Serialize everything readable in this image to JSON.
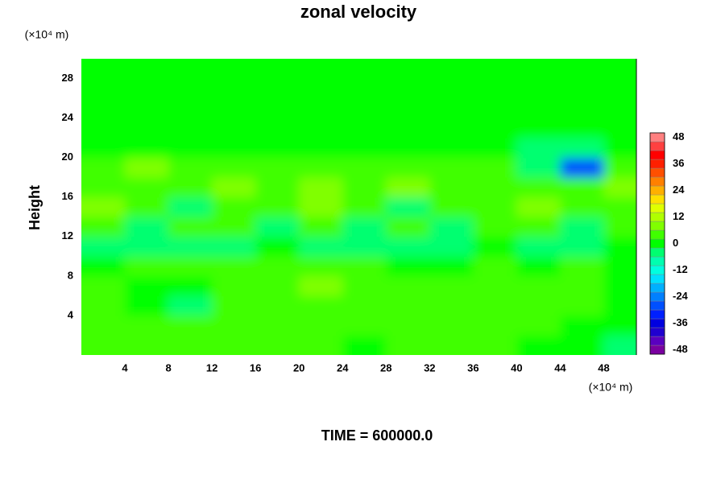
{
  "chart_data": {
    "type": "contour",
    "title": "zonal velocity",
    "ylabel": "Height",
    "y_unit": "(×10⁴ m)",
    "x_unit": "(×10⁴ m)",
    "footer": "TIME = 600000.0",
    "xlim": [
      0,
      51
    ],
    "ylim": [
      0,
      30
    ],
    "xticks": [
      4,
      8,
      12,
      16,
      20,
      24,
      28,
      32,
      36,
      40,
      44,
      48
    ],
    "yticks": [
      4,
      8,
      12,
      16,
      20,
      24,
      28
    ],
    "clim": [
      -50,
      50
    ],
    "cticks": [
      -48,
      -36,
      -24,
      -12,
      0,
      12,
      24,
      36,
      48
    ],
    "colormap": [
      "#7a00a0",
      "#5a00c0",
      "#2000d0",
      "#0000e0",
      "#0020ff",
      "#0050ff",
      "#0080ff",
      "#00b0ff",
      "#00e0ff",
      "#00ffe0",
      "#00ffb0",
      "#00ff70",
      "#00ff00",
      "#40ff00",
      "#80ff00",
      "#b0ff00",
      "#e0ff00",
      "#ffe000",
      "#ffb000",
      "#ff8000",
      "#ff5000",
      "#ff2000",
      "#ff0000",
      "#ff4040",
      "#ff8080"
    ],
    "x": [
      2,
      6,
      10,
      14,
      18,
      22,
      26,
      30,
      34,
      38,
      42,
      46,
      50
    ],
    "y": [
      1,
      3,
      5,
      7,
      9,
      11,
      13,
      15,
      17,
      19,
      21,
      23,
      25,
      27,
      29
    ],
    "z": [
      [
        2,
        4,
        5,
        4,
        2,
        3,
        1,
        4,
        3,
        2,
        1,
        0,
        -3
      ],
      [
        4,
        5,
        4,
        3,
        2,
        3,
        3,
        2,
        5,
        3,
        2,
        1,
        0
      ],
      [
        3,
        1,
        -3,
        2,
        3,
        4,
        2,
        5,
        3,
        3,
        4,
        2,
        1
      ],
      [
        2,
        -2,
        -1,
        3,
        5,
        6,
        3,
        2,
        2,
        4,
        5,
        3,
        1
      ],
      [
        1,
        2,
        4,
        2,
        2,
        5,
        3,
        1,
        0,
        2,
        1,
        2,
        0
      ],
      [
        -4,
        -5,
        -3,
        -4,
        -2,
        -3,
        -5,
        -4,
        -3,
        -2,
        -4,
        -3,
        -2
      ],
      [
        3,
        -3,
        5,
        4,
        -4,
        2,
        -5,
        3,
        -3,
        4,
        2,
        -4,
        3
      ],
      [
        6,
        4,
        -3,
        5,
        3,
        6,
        4,
        -4,
        5,
        3,
        6,
        2,
        4
      ],
      [
        3,
        5,
        3,
        7,
        4,
        7,
        3,
        6,
        5,
        4,
        3,
        5,
        7
      ],
      [
        4,
        6,
        4,
        5,
        3,
        4,
        5,
        4,
        3,
        5,
        -6,
        -28,
        4
      ],
      [
        1,
        0,
        1,
        0,
        0,
        1,
        0,
        0,
        0,
        0,
        -3,
        -6,
        1
      ],
      [
        0,
        0,
        0,
        0,
        0,
        0,
        0,
        0,
        0,
        0,
        0,
        0,
        0
      ],
      [
        0,
        0,
        0,
        0,
        0,
        0,
        0,
        0,
        0,
        0,
        0,
        0,
        0
      ],
      [
        0,
        0,
        0,
        0,
        0,
        0,
        0,
        0,
        0,
        0,
        0,
        0,
        0
      ],
      [
        0,
        0,
        0,
        0,
        0,
        0,
        0,
        0,
        0,
        0,
        0,
        0,
        0
      ]
    ]
  }
}
